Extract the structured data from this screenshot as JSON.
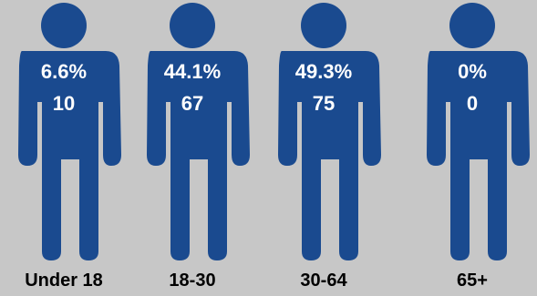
{
  "chart_data": {
    "type": "pictogram",
    "categories": [
      "Under 18",
      "18-30",
      "30-64",
      "65+"
    ],
    "percentages": [
      "6.6%",
      "44.1%",
      "49.3%",
      "0%"
    ],
    "values": [
      10,
      67,
      75,
      0
    ]
  },
  "colors": {
    "figure": "#1a4a8f",
    "background": "#c7c7c7",
    "label_text": "#ffffff",
    "category_text": "#000000"
  }
}
